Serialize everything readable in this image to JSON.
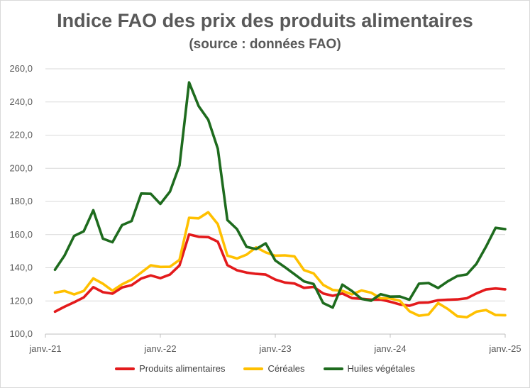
{
  "title": "Indice FAO des prix des produits alimentaires",
  "subtitle": "(source : données FAO)",
  "chart_data": {
    "type": "line",
    "title": "Indice FAO des prix des produits alimentaires",
    "subtitle": "(source : données FAO)",
    "xlabel": "",
    "ylabel": "",
    "x_ticks": [
      "janv.-21",
      "janv.-22",
      "janv.-23",
      "janv.-24",
      "janv.-25"
    ],
    "y_ticks": [
      "100,0",
      "120,0",
      "140,0",
      "160,0",
      "180,0",
      "200,0",
      "220,0",
      "240,0",
      "260,0"
    ],
    "ylim": [
      100,
      260
    ],
    "x_start": "janv.-21",
    "x_end": "janv.-25",
    "grid": true,
    "legend_position": "bottom",
    "series": [
      {
        "name": "Produits alimentaires",
        "color": "#e31a1c",
        "values": [
          113.5,
          116.5,
          119.2,
          122.1,
          128.3,
          125.3,
          124.4,
          128.1,
          129.5,
          133.5,
          135.4,
          133.7,
          135.9,
          141.4,
          160.1,
          158.7,
          158.5,
          155.7,
          141.6,
          138.5,
          137.1,
          136.3,
          135.9,
          132.9,
          131.1,
          130.5,
          127.9,
          128.5,
          124.5,
          123.1,
          124.5,
          121.7,
          121.3,
          120.8,
          120.8,
          119.5,
          117.9,
          117.1,
          118.9,
          119.1,
          120.4,
          120.7,
          120.9,
          121.6,
          124.5,
          126.9,
          127.5,
          127.0
        ]
      },
      {
        "name": "Céréales",
        "color": "#ffc000",
        "values": [
          125.0,
          126.0,
          123.9,
          126.0,
          133.6,
          130.4,
          126.2,
          130.0,
          132.8,
          137.1,
          141.5,
          140.5,
          140.6,
          144.8,
          170.1,
          169.8,
          173.5,
          166.3,
          147.3,
          145.6,
          147.9,
          152.3,
          149.3,
          147.3,
          147.5,
          146.9,
          138.6,
          136.6,
          129.7,
          126.6,
          126.1,
          124.0,
          126.3,
          125.0,
          121.6,
          121.5,
          120.1,
          113.8,
          111.1,
          111.8,
          118.7,
          115.2,
          110.8,
          110.2,
          113.5,
          114.5,
          111.5,
          111.4
        ]
      },
      {
        "name": "Huiles végétales",
        "color": "#1e6b1e",
        "values": [
          138.8,
          147.4,
          159.2,
          162.0,
          174.7,
          157.6,
          155.4,
          165.7,
          168.2,
          184.8,
          184.6,
          178.5,
          185.9,
          201.7,
          251.8,
          237.5,
          229.3,
          211.8,
          168.8,
          163.3,
          152.6,
          151.3,
          154.7,
          144.4,
          140.4,
          136.1,
          131.8,
          130.2,
          118.7,
          116.0,
          129.8,
          126.0,
          121.2,
          120.1,
          124.1,
          122.6,
          122.7,
          120.7,
          130.4,
          130.8,
          127.8,
          131.8,
          135.0,
          136.0,
          142.4,
          152.7,
          164.1,
          163.3
        ]
      }
    ]
  }
}
